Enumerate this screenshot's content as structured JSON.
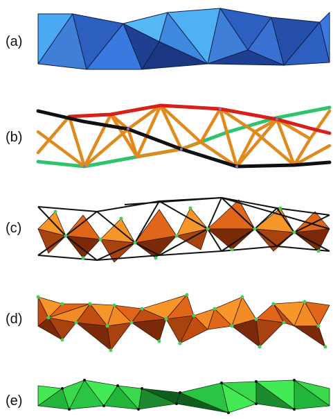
{
  "panels": [
    {
      "label": "(a)"
    },
    {
      "label": "(b)"
    },
    {
      "label": "(c)"
    },
    {
      "label": "(d)"
    },
    {
      "label": "(e)"
    }
  ],
  "colors": {
    "blue_light": "#4aa9f0",
    "blue_mid": "#3f7fd8",
    "blue_dark": "#1f3f92",
    "strut_orange": "#e08a1e",
    "strut_red": "#d8201a",
    "strut_black": "#111111",
    "strut_green": "#2ec46e",
    "oct_light": "#f7972a",
    "oct_mid": "#e0661a",
    "oct_dark": "#7a2a08",
    "vertex_green": "#41d15a",
    "green_light": "#44ea55",
    "green_mid": "#22b53a",
    "green_dark": "#0f5e1d"
  }
}
